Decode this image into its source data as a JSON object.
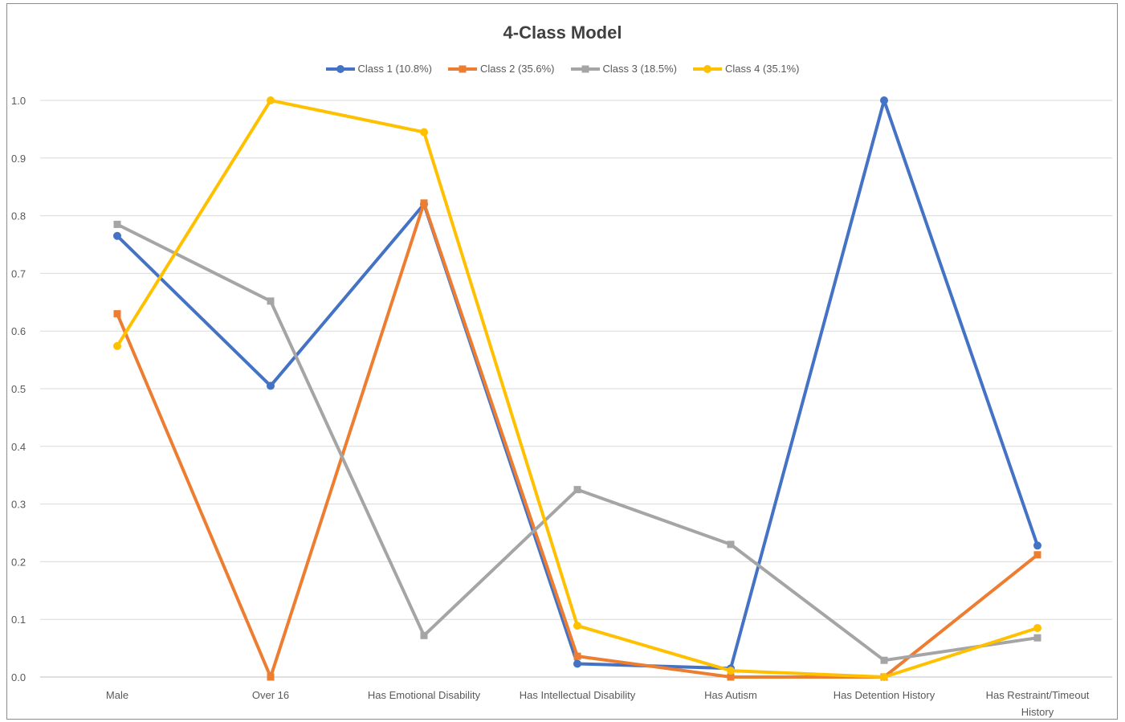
{
  "chart_data": {
    "type": "line",
    "title": "4-Class Model",
    "xlabel": "",
    "ylabel": "",
    "ylim": [
      0,
      1.0
    ],
    "yticks": [
      "0.0",
      "0.1",
      "0.2",
      "0.3",
      "0.4",
      "0.5",
      "0.6",
      "0.7",
      "0.8",
      "0.9",
      "1.0"
    ],
    "categories": [
      "Male",
      "Over 16",
      "Has Emotional Disability",
      "Has Intellectual Disability",
      "Has Autism",
      "Has Detention History",
      "Has Restraint/Timeout History"
    ],
    "grid": true,
    "legend_position": "top",
    "series": [
      {
        "name": "Class 1 (10.8%)",
        "color": "#4472c4",
        "marker": "circle",
        "values": [
          0.765,
          0.505,
          0.82,
          0.023,
          0.015,
          1.0,
          0.228
        ]
      },
      {
        "name": "Class 2 (35.6%)",
        "color": "#ed7d31",
        "marker": "square",
        "values": [
          0.63,
          0.0,
          0.822,
          0.036,
          0.0,
          0.0,
          0.212
        ]
      },
      {
        "name": "Class 3 (18.5%)",
        "color": "#a5a5a5",
        "marker": "square",
        "values": [
          0.785,
          0.652,
          0.072,
          0.325,
          0.23,
          0.029,
          0.068
        ]
      },
      {
        "name": "Class 4 (35.1%)",
        "color": "#ffc000",
        "marker": "circle",
        "values": [
          0.574,
          1.0,
          0.945,
          0.089,
          0.011,
          0.0,
          0.085
        ]
      }
    ]
  }
}
